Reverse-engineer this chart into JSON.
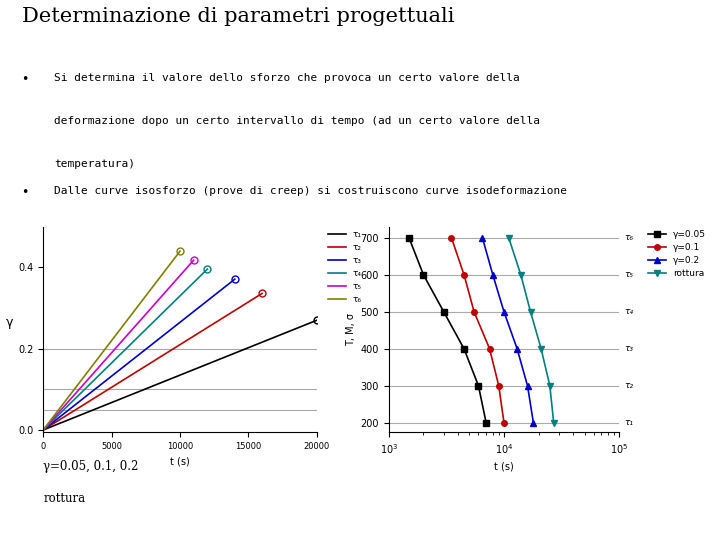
{
  "title": "Determinazione di parametri progettuali",
  "bullet1_line1": "Si determina il valore dello sforzo che provoca un certo valore della",
  "bullet1_line2": "deformazione dopo un certo intervallo di tempo (ad un certo valore della",
  "bullet1_line3": "temperatura)",
  "bullet2": "Dalle curve isosforzo (prove di creep) si costruiscono curve isodeformazione",
  "caption1": "γ=0.05, 0.1, 0.2",
  "caption2": "rottura",
  "left_plot": {
    "xlabel": "t (s)",
    "ylabel": "γ",
    "xlim": [
      0,
      20000
    ],
    "ylim": [
      -0.005,
      0.5
    ],
    "hlines": [
      0.05,
      0.1,
      0.2
    ],
    "hline_color": "#aaaaaa",
    "series": [
      {
        "label": "τ₁",
        "color": "#000000",
        "slope": 1.35e-05,
        "end_t": 20000
      },
      {
        "label": "τ₂",
        "color": "#c00000",
        "slope": 2.1e-05,
        "end_t": 16000
      },
      {
        "label": "τ₃",
        "color": "#0000cc",
        "slope": 2.65e-05,
        "end_t": 14000
      },
      {
        "label": "τ₄",
        "color": "#008080",
        "slope": 3.3e-05,
        "end_t": 12000
      },
      {
        "label": "τ₅",
        "color": "#cc00cc",
        "slope": 3.8e-05,
        "end_t": 11000
      },
      {
        "label": "τ₆",
        "color": "#808000",
        "slope": 4.4e-05,
        "end_t": 10000
      }
    ]
  },
  "right_plot": {
    "xlabel": "t (s)",
    "ylabel": "T, M, σ",
    "xlim_log": [
      1000,
      100000
    ],
    "ylim": [
      175,
      730
    ],
    "yticks": [
      200,
      300,
      400,
      500,
      600,
      700
    ],
    "tau_labels": [
      "τ₁",
      "τ₂",
      "τ₃",
      "τ₄",
      "τ₅",
      "τ₆"
    ],
    "tau_yvals": [
      200,
      300,
      400,
      500,
      600,
      700
    ],
    "hline_color": "#aaaaaa",
    "series": [
      {
        "label": "γ=0.05",
        "color": "#000000",
        "marker": "s",
        "points_t": [
          1500,
          2000,
          3000,
          4500,
          6000
        ],
        "points_y": [
          700,
          600,
          500,
          400,
          300
        ],
        "end_t": 7000,
        "end_y": 200
      },
      {
        "label": "γ=0.1",
        "color": "#c00000",
        "marker": "o",
        "points_t": [
          3500,
          4500,
          5500,
          7500,
          9000
        ],
        "points_y": [
          700,
          600,
          500,
          400,
          300
        ],
        "end_t": 10000,
        "end_y": 200
      },
      {
        "label": "γ=0.2",
        "color": "#0000cc",
        "marker": "^",
        "points_t": [
          6500,
          8000,
          10000,
          13000,
          16000
        ],
        "points_y": [
          700,
          600,
          500,
          400,
          300
        ],
        "end_t": 18000,
        "end_y": 200
      },
      {
        "label": "rottura",
        "color": "#008080",
        "marker": "v",
        "points_t": [
          11000,
          14000,
          17000,
          21000,
          25000
        ],
        "points_y": [
          700,
          600,
          500,
          400,
          300
        ],
        "end_t": 27000,
        "end_y": 200
      }
    ]
  },
  "bg_color": "#ffffff",
  "text_color": "#000000"
}
